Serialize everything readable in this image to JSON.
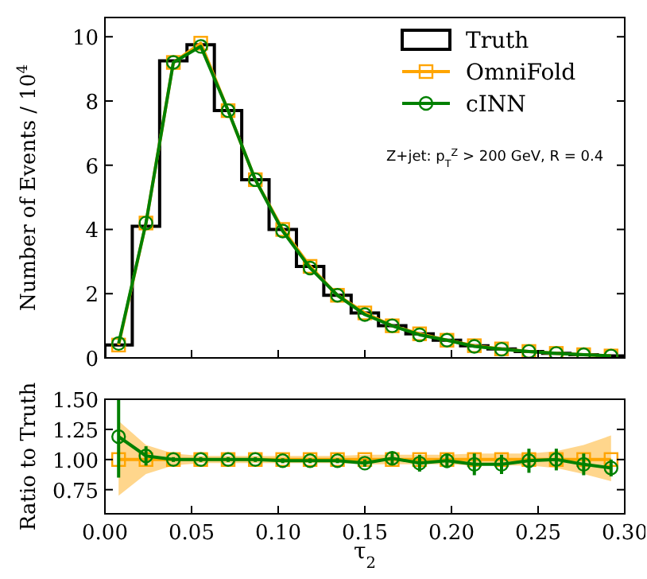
{
  "chart_data": [
    {
      "type": "line",
      "ylabel": "Number of Events / 10$^{4}$",
      "bins": [
        0,
        0.01579,
        0.03158,
        0.04737,
        0.06316,
        0.07895,
        0.09474,
        0.11053,
        0.12632,
        0.14211,
        0.15789,
        0.17368,
        0.18947,
        0.20526,
        0.22105,
        0.23684,
        0.25263,
        0.26842,
        0.28421,
        0.3
      ],
      "x": [
        0.0079,
        0.0237,
        0.0395,
        0.0553,
        0.0711,
        0.0868,
        0.1026,
        0.1184,
        0.1342,
        0.15,
        0.1658,
        0.1816,
        0.1974,
        0.2132,
        0.2289,
        0.2447,
        0.2605,
        0.2763,
        0.2921
      ],
      "series": [
        {
          "name": "Truth",
          "type": "histogram",
          "color": "#000000",
          "values": [
            0.4,
            4.1,
            9.25,
            9.75,
            7.7,
            5.55,
            4.0,
            2.85,
            1.95,
            1.4,
            1.0,
            0.75,
            0.55,
            0.38,
            0.28,
            0.2,
            0.14,
            0.1,
            0.06
          ]
        },
        {
          "name": "OmniFold",
          "type": "line",
          "color": "#ffa500",
          "marker": "square",
          "values": [
            0.4,
            4.2,
            9.2,
            9.8,
            7.7,
            5.55,
            4.0,
            2.85,
            1.95,
            1.4,
            1.0,
            0.75,
            0.55,
            0.38,
            0.28,
            0.2,
            0.14,
            0.1,
            0.06
          ]
        },
        {
          "name": "cINN",
          "type": "line",
          "color": "#008000",
          "marker": "circle",
          "values": [
            0.45,
            4.2,
            9.2,
            9.7,
            7.7,
            5.55,
            3.95,
            2.8,
            1.95,
            1.35,
            1.0,
            0.72,
            0.55,
            0.36,
            0.27,
            0.2,
            0.14,
            0.1,
            0.06
          ]
        }
      ],
      "xlim": [
        0,
        0.3
      ],
      "xticks": [
        0,
        0.05,
        0.1,
        0.15,
        0.2,
        0.25,
        0.3
      ],
      "ylim": [
        0,
        10.6
      ],
      "yticks": [
        0,
        2,
        4,
        6,
        8,
        10
      ],
      "tick_labels": "y",
      "legend": "top right",
      "annotations": [
        "Z+jet: p$_{T}$$^{Z}$ > 200 GeV, R = 0.4"
      ]
    },
    {
      "type": "line",
      "xlabel": "τ$_{2}$",
      "ylabel": "Ratio to Truth",
      "x": [
        0.0079,
        0.0237,
        0.0395,
        0.0553,
        0.0711,
        0.0868,
        0.1026,
        0.1184,
        0.1342,
        0.15,
        0.1658,
        0.1816,
        0.1974,
        0.2132,
        0.2289,
        0.2447,
        0.2605,
        0.2763,
        0.2921
      ],
      "series": [
        {
          "color": "#ffa500",
          "marker": "square",
          "values": [
            1,
            1,
            1,
            1,
            1,
            1,
            1,
            1,
            1,
            1,
            1,
            1,
            1,
            1,
            1,
            1,
            1,
            1,
            1
          ],
          "lower": [
            0.7,
            0.88,
            0.95,
            0.97,
            0.97,
            0.97,
            0.97,
            0.97,
            0.97,
            0.96,
            0.96,
            0.96,
            0.96,
            0.95,
            0.95,
            0.95,
            0.93,
            0.88,
            0.82
          ],
          "upper": [
            1.32,
            1.12,
            1.05,
            1.03,
            1.03,
            1.03,
            1.03,
            1.03,
            1.03,
            1.04,
            1.04,
            1.04,
            1.04,
            1.05,
            1.05,
            1.05,
            1.07,
            1.12,
            1.2
          ]
        },
        {
          "color": "#008000",
          "marker": "circle",
          "values": [
            1.19,
            1.03,
            1.0,
            1.0,
            1.0,
            1.0,
            0.99,
            0.99,
            0.99,
            0.97,
            1.01,
            0.97,
            0.99,
            0.96,
            0.96,
            0.99,
            1.0,
            0.96,
            0.93
          ],
          "errors": [
            [
              0.85,
              1.5
            ],
            0.08,
            0.02,
            0.02,
            0.02,
            0.02,
            0.02,
            0.02,
            0.02,
            0.03,
            0.05,
            0.07,
            0.06,
            0.09,
            0.08,
            0.1,
            0.09,
            0.09,
            0.07
          ]
        }
      ],
      "xlim": [
        0,
        0.3
      ],
      "xticks": [
        {
          "value": 0,
          "label": "0.00"
        },
        {
          "value": 0.05,
          "label": "0.05"
        },
        {
          "value": 0.1,
          "label": "0.10"
        },
        {
          "value": 0.15,
          "label": "0.15"
        },
        {
          "value": 0.2,
          "label": "0.20"
        },
        {
          "value": 0.25,
          "label": "0.25"
        },
        {
          "value": 0.3,
          "label": "0.30"
        }
      ],
      "ylim": [
        0.55,
        1.5
      ],
      "yticks": [
        {
          "value": 0.75,
          "label": "0.75"
        },
        {
          "value": 1,
          "label": "1.00"
        },
        {
          "value": 1.25,
          "label": "1.25"
        },
        {
          "value": 1.5,
          "label": "1.50"
        }
      ]
    }
  ]
}
